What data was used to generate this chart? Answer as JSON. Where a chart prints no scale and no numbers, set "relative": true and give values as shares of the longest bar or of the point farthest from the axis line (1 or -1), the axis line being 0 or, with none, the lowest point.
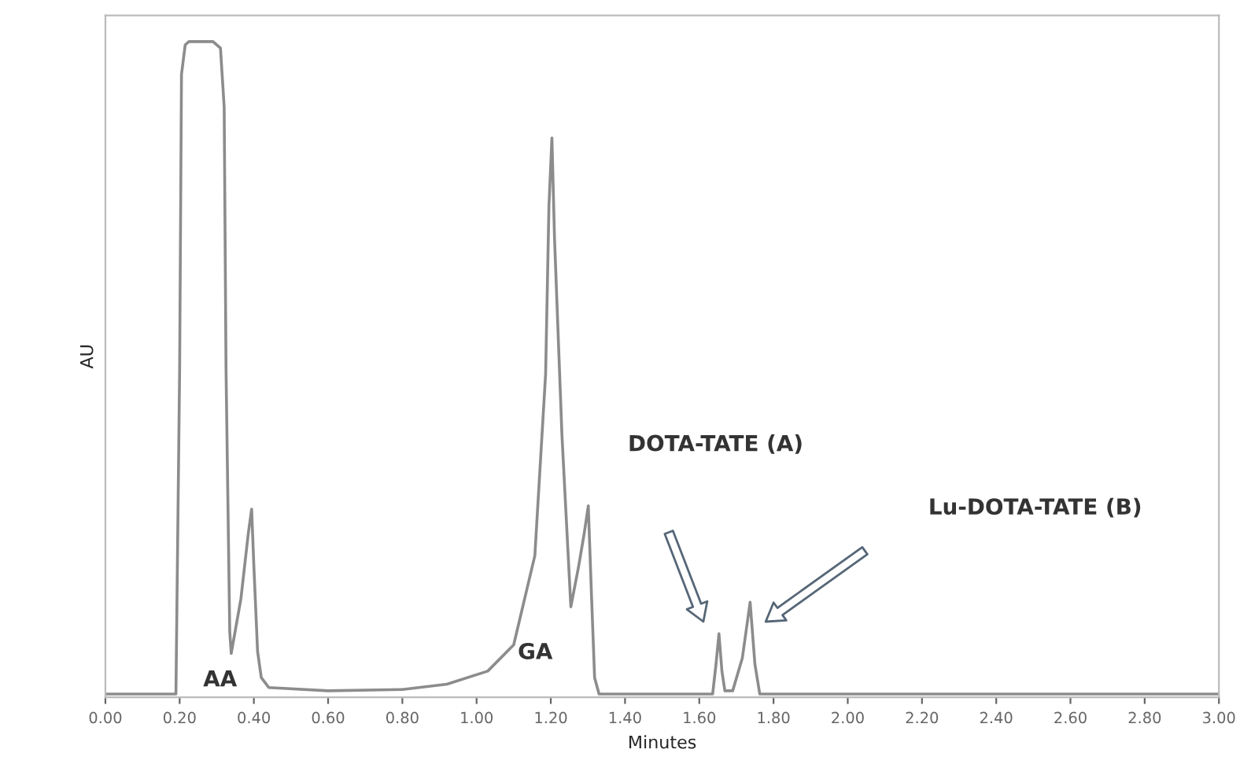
{
  "chart_data": {
    "type": "line",
    "xlabel": "Minutes",
    "ylabel": "AU",
    "relative": true,
    "tick_labels": "x",
    "grid": false,
    "marker": "none",
    "line_style": "solid",
    "xlim": [
      0,
      3.0
    ],
    "xticks": [
      {
        "value": 0,
        "label": "0.00"
      },
      {
        "value": 0.2,
        "label": "0.20"
      },
      {
        "value": 0.4,
        "label": "0.40"
      },
      {
        "value": 0.6,
        "label": "0.60"
      },
      {
        "value": 0.8,
        "label": "0.80"
      },
      {
        "value": 1.0,
        "label": "1.00"
      },
      {
        "value": 1.2,
        "label": "1.20"
      },
      {
        "value": 1.4,
        "label": "1.40"
      },
      {
        "value": 1.6,
        "label": "1.60"
      },
      {
        "value": 1.8,
        "label": "1.80"
      },
      {
        "value": 2.0,
        "label": "2.00"
      },
      {
        "value": 2.2,
        "label": "2.20"
      },
      {
        "value": 2.4,
        "label": "2.40"
      },
      {
        "value": 2.6,
        "label": "2.60"
      },
      {
        "value": 2.8,
        "label": "2.80"
      },
      {
        "value": 3.0,
        "label": "3.00"
      }
    ],
    "series": [
      {
        "color": "#8c8c8c",
        "x": [
          0,
          0.19,
          0.2,
          0.205,
          0.215,
          0.225,
          0.29,
          0.31,
          0.32,
          0.325,
          0.335,
          0.339,
          0.365,
          0.385,
          0.394,
          0.4,
          0.41,
          0.42,
          0.44,
          0.6,
          0.8,
          0.92,
          1.03,
          1.1,
          1.157,
          1.186,
          1.195,
          1.203,
          1.21,
          1.23,
          1.254,
          1.275,
          1.29,
          1.301,
          1.31,
          1.318,
          1.33,
          1.636,
          1.645,
          1.653,
          1.661,
          1.669,
          1.69,
          1.716,
          1.737,
          1.75,
          1.763,
          3.0
        ],
        "values": [
          0.005,
          0.005,
          0.5,
          0.95,
          0.995,
          1.0,
          1.0,
          0.99,
          0.9,
          0.5,
          0.1,
          0.067,
          0.15,
          0.25,
          0.287,
          0.2,
          0.07,
          0.03,
          0.015,
          0.01,
          0.012,
          0.02,
          0.04,
          0.08,
          0.216,
          0.493,
          0.75,
          0.853,
          0.7,
          0.4,
          0.138,
          0.2,
          0.25,
          0.292,
          0.15,
          0.03,
          0.005,
          0.005,
          0.05,
          0.097,
          0.04,
          0.01,
          0.01,
          0.06,
          0.145,
          0.05,
          0.005,
          0.005
        ]
      }
    ],
    "annotations": [
      "AA",
      "GA",
      "DOTA-TATE (A)",
      "Lu-DOTA-TATE (B)"
    ]
  }
}
